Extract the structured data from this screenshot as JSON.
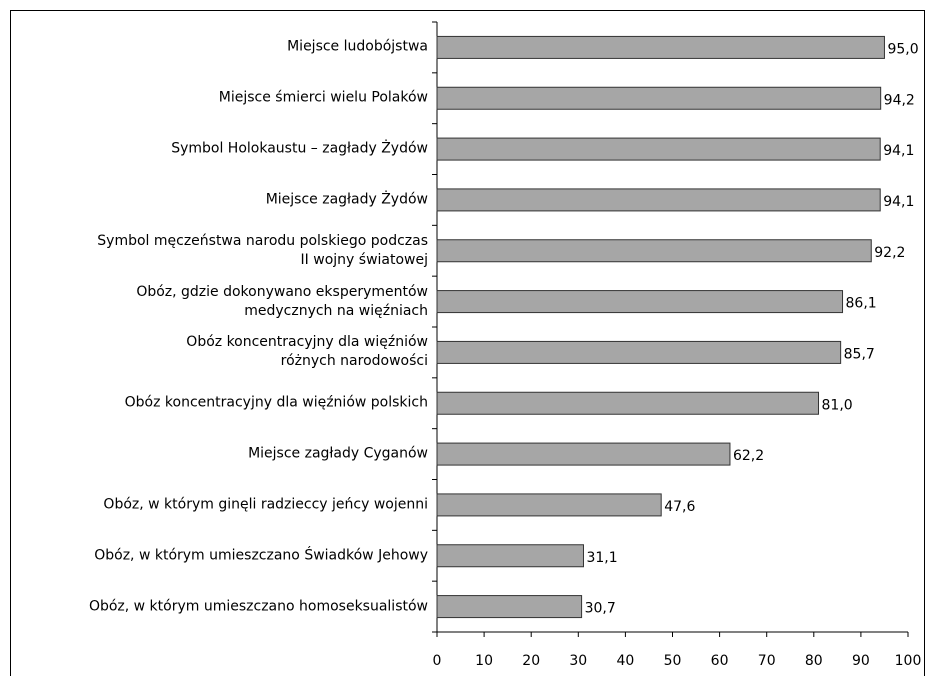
{
  "chart_data": {
    "type": "bar",
    "orientation": "horizontal",
    "categories": [
      "Miejsce ludobójstwa",
      "Miejsce śmierci wielu Polaków",
      "Symbol Holokaustu – zagłady Żydów",
      "Miejsce zagłady Żydów",
      "Symbol męczeństwa narodu polskiego podczas\nII wojny światowej",
      "Obóz, gdzie dokonywano eksperymentów\nmedycznych na więźniach",
      "Obóz koncentracyjny dla więźniów\nróżnych narodowości",
      "Obóz koncentracyjny dla więźniów polskich",
      "Miejsce zagłady Cyganów",
      "Obóz, w którym ginęli radzieccy jeńcy wojenni",
      "Obóz, w którym umieszczano Świadków Jehowy",
      "Obóz, w którym umieszczano homoseksualistów"
    ],
    "values": [
      95.0,
      94.2,
      94.1,
      94.1,
      92.2,
      86.1,
      85.7,
      81.0,
      62.2,
      47.6,
      31.1,
      30.7
    ],
    "value_labels": [
      "95,0",
      "94,2",
      "94,1",
      "94,1",
      "92,2",
      "86,1",
      "85,7",
      "81,0",
      "62,2",
      "47,6",
      "31,1",
      "30,7"
    ],
    "color": "#a6a6a6",
    "xlim": [
      0,
      100
    ],
    "xticks": [
      0,
      10,
      20,
      30,
      40,
      50,
      60,
      70,
      80,
      90,
      100
    ],
    "grid": false
  }
}
